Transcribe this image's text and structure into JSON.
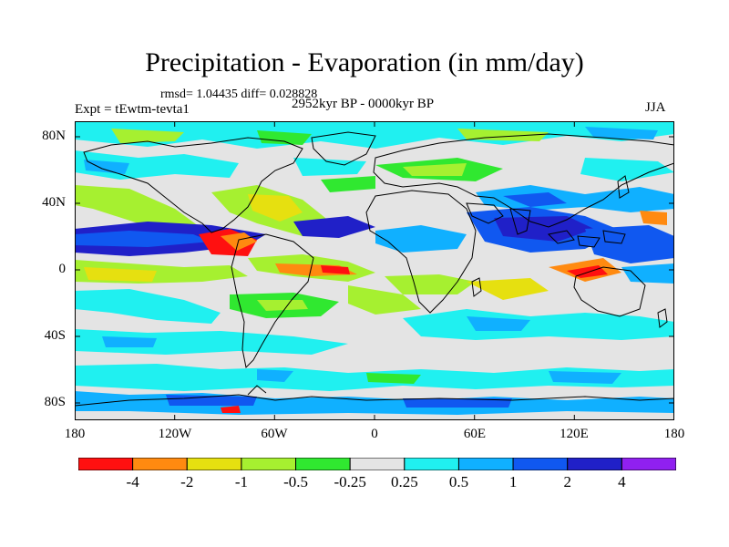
{
  "title": "Precipitation - Evaporation (in mm/day)",
  "stats": "rmsd= 1.04435  diff= 0.028828",
  "experiment": "Expt = tEwtm-tevta1",
  "period": "2952kyr BP - 0000kyr BP",
  "season": "JJA",
  "axes": {
    "lat_labels": [
      "80N",
      "40N",
      "0",
      "40S",
      "80S"
    ],
    "lon_labels": [
      "180",
      "120W",
      "60W",
      "0",
      "60E",
      "120E",
      "180"
    ]
  },
  "colorbar": {
    "labels": [
      "-4",
      "-2",
      "-1",
      "-0.5",
      "-0.25",
      "0.25",
      "0.5",
      "1",
      "2",
      "4"
    ],
    "colors": [
      "#ff1010",
      "#ff8a10",
      "#e6e010",
      "#a6f030",
      "#30e830",
      "#e4e4e4",
      "#20f0f0",
      "#10b0ff",
      "#1058f0",
      "#2020c8",
      "#9020f0"
    ]
  },
  "colors": {
    "land_outline": "#000000",
    "neutral": "#e4e4e4"
  }
}
